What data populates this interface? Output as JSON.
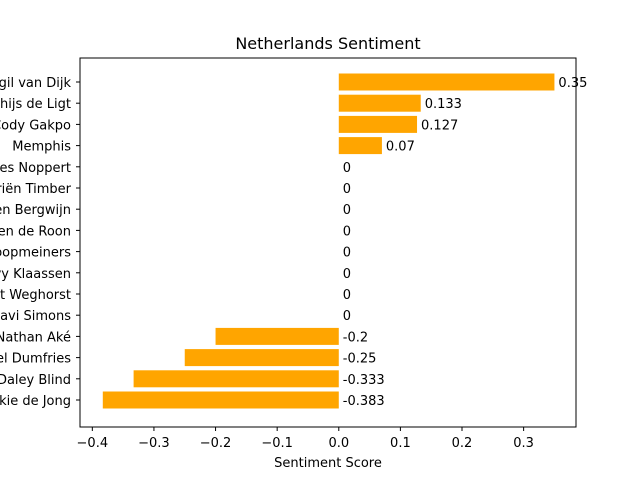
{
  "chart_data": {
    "type": "bar",
    "orientation": "horizontal",
    "title": "Netherlands Sentiment",
    "xlabel": "Sentiment Score",
    "ylabel": "",
    "xlim": [
      -0.42,
      0.385
    ],
    "xticks": [
      -0.4,
      -0.3,
      -0.2,
      -0.1,
      0.0,
      0.1,
      0.2,
      0.3
    ],
    "xtick_labels": [
      "−0.4",
      "−0.3",
      "−0.2",
      "−0.1",
      "0.0",
      "0.1",
      "0.2",
      "0.3"
    ],
    "grid": false,
    "bar_color": "#FFA500",
    "categories": [
      "Virgil van Dijk",
      "Matthijs de Ligt",
      "Cody Gakpo",
      "Memphis",
      "Andries Noppert",
      "Jurriën Timber",
      "Steven Bergwijn",
      "Marten de Roon",
      "Teun Koopmeiners",
      "Davy Klaassen",
      "Wout Weghorst",
      "Xavi Simons",
      "Nathan Aké",
      "Denzel Dumfries",
      "Daley Blind",
      "Frenkie de Jong"
    ],
    "values": [
      0.35,
      0.133,
      0.127,
      0.07,
      0,
      0,
      0,
      0,
      0,
      0,
      0,
      0,
      -0.2,
      -0.25,
      -0.333,
      -0.383
    ],
    "value_labels": [
      "0.35",
      "0.133",
      "0.127",
      "0.07",
      "0",
      "0",
      "0",
      "0",
      "0",
      "0",
      "0",
      "0",
      "-0.2",
      "-0.25",
      "-0.333",
      "-0.383"
    ]
  }
}
